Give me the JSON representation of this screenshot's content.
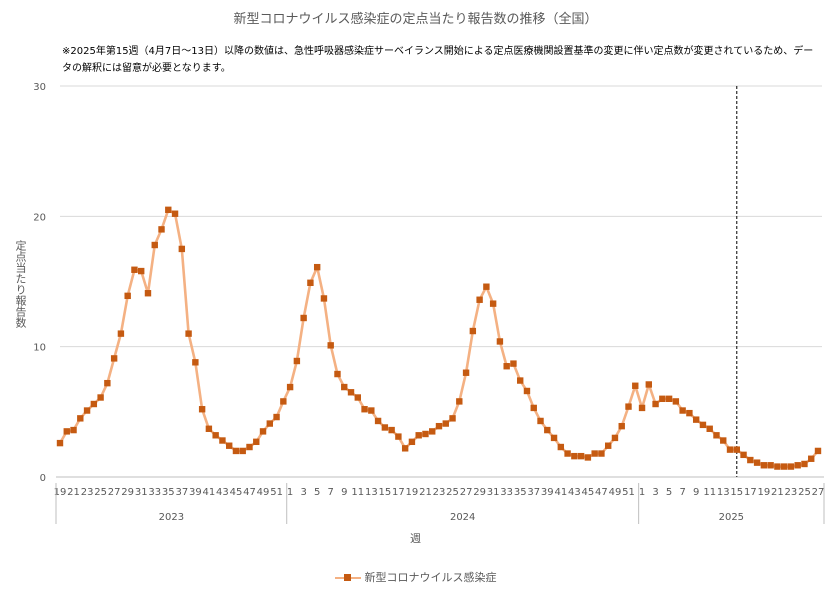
{
  "chart_data": {
    "type": "line",
    "title": "新型コロナウイルス感染症の定点当たり報告数の推移（全国）",
    "note": "※2025年第15週（4月7日～13日）以降の数値は、急性呼吸器感染症サーベイランス開始による定点医療機関設置基準の変更に伴い定点数が変更されているため、データの解釈には留意が必要となります。",
    "xlabel": "週",
    "ylabel": "定点当たり報告数",
    "ylim": [
      0,
      30
    ],
    "yticks": [
      0,
      10,
      20,
      30
    ],
    "grid": true,
    "legend": "bottom",
    "colors": {
      "line": "#f4b183",
      "marker": "#c55a11",
      "grid": "#d9d9d9",
      "axis": "#bfbfbf",
      "divider": "#000000"
    },
    "years": [
      {
        "label": "2023",
        "weeks": [
          19,
          20,
          21,
          22,
          23,
          24,
          25,
          26,
          27,
          28,
          29,
          30,
          31,
          32,
          33,
          34,
          35,
          36,
          37,
          38,
          39,
          40,
          41,
          42,
          43,
          44,
          45,
          46,
          47,
          48,
          49,
          50,
          51,
          52
        ]
      },
      {
        "label": "2024",
        "weeks": [
          1,
          2,
          3,
          4,
          5,
          6,
          7,
          8,
          9,
          10,
          11,
          12,
          13,
          14,
          15,
          16,
          17,
          18,
          19,
          20,
          21,
          22,
          23,
          24,
          25,
          26,
          27,
          28,
          29,
          30,
          31,
          32,
          33,
          34,
          35,
          36,
          37,
          38,
          39,
          40,
          41,
          42,
          43,
          44,
          45,
          46,
          47,
          48,
          49,
          50,
          51,
          52
        ]
      },
      {
        "label": "2025",
        "weeks": [
          1,
          2,
          3,
          4,
          5,
          6,
          7,
          8,
          9,
          10,
          11,
          12,
          13,
          14,
          15,
          16,
          17,
          18,
          19,
          20,
          21,
          22,
          23,
          24,
          25,
          26,
          27
        ]
      }
    ],
    "divider_at": {
      "year": "2025",
      "week": 15
    },
    "series": [
      {
        "name": "新型コロナウイルス感染症",
        "values": [
          2.6,
          3.5,
          3.6,
          4.5,
          5.1,
          5.6,
          6.1,
          7.2,
          9.1,
          11.0,
          13.9,
          15.9,
          15.8,
          14.1,
          17.8,
          19.0,
          20.5,
          20.2,
          17.5,
          11.0,
          8.8,
          5.2,
          3.7,
          3.2,
          2.8,
          2.4,
          2.0,
          2.0,
          2.3,
          2.7,
          3.5,
          4.1,
          4.6,
          5.8,
          6.9,
          8.9,
          12.2,
          14.9,
          16.1,
          13.7,
          10.1,
          7.9,
          6.9,
          6.5,
          6.1,
          5.2,
          5.1,
          4.3,
          3.8,
          3.6,
          3.1,
          2.2,
          2.7,
          3.2,
          3.3,
          3.5,
          3.9,
          4.1,
          4.5,
          5.8,
          8.0,
          11.2,
          13.6,
          14.6,
          13.3,
          10.4,
          8.5,
          8.7,
          7.4,
          6.6,
          5.3,
          4.3,
          3.6,
          3.0,
          2.3,
          1.8,
          1.6,
          1.6,
          1.5,
          1.8,
          1.8,
          2.4,
          3.0,
          3.9,
          5.4,
          7.0,
          5.3,
          7.1,
          5.6,
          6.0,
          6.0,
          5.8,
          5.1,
          4.9,
          4.4,
          4.0,
          3.7,
          3.2,
          2.8,
          2.1,
          2.1,
          1.7,
          1.3,
          1.1,
          0.9,
          0.9,
          0.8,
          0.8,
          0.8,
          0.9,
          1.0,
          1.4,
          2.0
        ]
      }
    ]
  }
}
